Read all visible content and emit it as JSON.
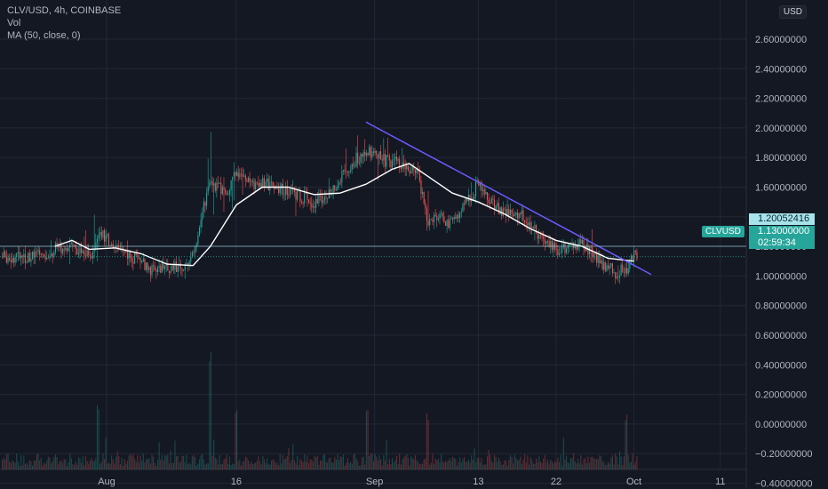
{
  "header": {
    "symbol_line": "CLV/USD, 4h, COINBASE",
    "vol_label": "Vol",
    "ma_label": "MA (50, close, 0)"
  },
  "currency_button": "USD",
  "price_tags": {
    "crosshair_price": "1.20052416",
    "symbol": "CLVUSD",
    "last_price": "1.13000000",
    "countdown": "02:59:34"
  },
  "colors": {
    "background": "#141823",
    "grid": "#232734",
    "up": "#26a69a",
    "down": "#ef5350",
    "ma": "#ffffff",
    "trendline": "#6a5cff",
    "crosshair_tag": "#a8e3ec",
    "last_tag": "#26a69a"
  },
  "chart_data": {
    "type": "candlestick",
    "title": "CLV/USD, 4h, COINBASE",
    "ylim": [
      -0.5,
      2.66
    ],
    "y_ticks": [
      "2.60000000",
      "2.40000000",
      "2.20000000",
      "2.00000000",
      "1.80000000",
      "1.60000000",
      "1.40000000",
      "1.20000000",
      "1.00000000",
      "0.80000000",
      "0.60000000",
      "0.40000000",
      "0.20000000",
      "0.00000000",
      "−0.20000000",
      "−0.40000000"
    ],
    "y_tick_values": [
      2.6,
      2.4,
      2.2,
      2.0,
      1.8,
      1.6,
      1.4,
      1.2,
      1.0,
      0.8,
      0.6,
      0.4,
      0.2,
      0.0,
      -0.2,
      -0.4
    ],
    "x_ticks": [
      "Aug",
      "16",
      "Sep",
      "13",
      "22",
      "Oct",
      "11"
    ],
    "x_tick_dates": [
      "2021-08-01",
      "2021-08-16",
      "2021-09-01",
      "2021-09-13",
      "2021-09-22",
      "2021-10-01",
      "2021-10-11"
    ],
    "x_range": [
      "2021-07-26",
      "2021-10-15"
    ],
    "price_path": [
      {
        "date": "2021-07-26",
        "price": 1.18,
        "low": 1.05,
        "high": 1.35
      },
      {
        "date": "2021-07-28",
        "price": 1.2,
        "low": 1.08,
        "high": 1.4
      },
      {
        "date": "2021-07-30",
        "price": 1.12,
        "low": 1.05,
        "high": 1.3
      },
      {
        "date": "2021-07-31",
        "price": 1.3,
        "low": 1.1,
        "high": 1.72
      },
      {
        "date": "2021-08-02",
        "price": 1.18,
        "low": 1.08,
        "high": 1.48
      },
      {
        "date": "2021-08-04",
        "price": 1.12,
        "low": 1.02,
        "high": 1.25
      },
      {
        "date": "2021-08-06",
        "price": 1.05,
        "low": 0.95,
        "high": 1.15
      },
      {
        "date": "2021-08-08",
        "price": 1.06,
        "low": 0.98,
        "high": 1.18
      },
      {
        "date": "2021-08-10",
        "price": 1.04,
        "low": 0.97,
        "high": 1.12
      },
      {
        "date": "2021-08-11",
        "price": 1.15,
        "low": 1.02,
        "high": 1.3
      },
      {
        "date": "2021-08-12",
        "price": 1.45,
        "low": 1.15,
        "high": 1.65
      },
      {
        "date": "2021-08-13",
        "price": 1.62,
        "low": 1.4,
        "high": 2.0
      },
      {
        "date": "2021-08-15",
        "price": 1.58,
        "low": 1.45,
        "high": 1.78
      },
      {
        "date": "2021-08-16",
        "price": 1.72,
        "low": 1.5,
        "high": 2.05
      },
      {
        "date": "2021-08-18",
        "price": 1.62,
        "low": 1.52,
        "high": 1.78
      },
      {
        "date": "2021-08-20",
        "price": 1.62,
        "low": 1.55,
        "high": 1.72
      },
      {
        "date": "2021-08-23",
        "price": 1.55,
        "low": 1.35,
        "high": 1.62
      },
      {
        "date": "2021-08-25",
        "price": 1.5,
        "low": 1.38,
        "high": 1.6
      },
      {
        "date": "2021-08-27",
        "price": 1.58,
        "low": 1.48,
        "high": 1.7
      },
      {
        "date": "2021-08-29",
        "price": 1.75,
        "low": 1.55,
        "high": 1.95
      },
      {
        "date": "2021-08-31",
        "price": 1.85,
        "low": 1.65,
        "high": 2.18
      },
      {
        "date": "2021-09-02",
        "price": 1.78,
        "low": 1.68,
        "high": 1.9
      },
      {
        "date": "2021-09-04",
        "price": 1.75,
        "low": 1.65,
        "high": 1.85
      },
      {
        "date": "2021-09-06",
        "price": 1.7,
        "low": 1.6,
        "high": 1.78
      },
      {
        "date": "2021-09-07",
        "price": 1.35,
        "low": 1.05,
        "high": 1.55
      },
      {
        "date": "2021-09-08",
        "price": 1.4,
        "low": 1.25,
        "high": 1.5
      },
      {
        "date": "2021-09-10",
        "price": 1.35,
        "low": 1.22,
        "high": 1.48
      },
      {
        "date": "2021-09-11",
        "price": 1.45,
        "low": 1.3,
        "high": 1.62
      },
      {
        "date": "2021-09-13",
        "price": 1.62,
        "low": 1.45,
        "high": 1.7
      },
      {
        "date": "2021-09-15",
        "price": 1.45,
        "low": 1.35,
        "high": 1.55
      },
      {
        "date": "2021-09-18",
        "price": 1.4,
        "low": 1.3,
        "high": 1.48
      },
      {
        "date": "2021-09-20",
        "price": 1.28,
        "low": 1.15,
        "high": 1.38
      },
      {
        "date": "2021-09-22",
        "price": 1.18,
        "low": 1.1,
        "high": 1.3
      },
      {
        "date": "2021-09-24",
        "price": 1.22,
        "low": 1.12,
        "high": 1.3
      },
      {
        "date": "2021-09-26",
        "price": 1.18,
        "low": 1.08,
        "high": 1.32
      },
      {
        "date": "2021-09-27",
        "price": 1.08,
        "low": 1.0,
        "high": 1.18
      },
      {
        "date": "2021-09-29",
        "price": 1.02,
        "low": 0.95,
        "high": 1.1
      },
      {
        "date": "2021-09-30",
        "price": 1.05,
        "low": 0.98,
        "high": 1.12
      },
      {
        "date": "2021-10-01",
        "price": 1.13,
        "low": 1.05,
        "high": 1.22
      }
    ],
    "ma_path": [
      {
        "date": "2021-07-26",
        "price": 1.2
      },
      {
        "date": "2021-07-28",
        "price": 1.24
      },
      {
        "date": "2021-07-30",
        "price": 1.18
      },
      {
        "date": "2021-08-02",
        "price": 1.19
      },
      {
        "date": "2021-08-05",
        "price": 1.15
      },
      {
        "date": "2021-08-08",
        "price": 1.08
      },
      {
        "date": "2021-08-11",
        "price": 1.07
      },
      {
        "date": "2021-08-13",
        "price": 1.2
      },
      {
        "date": "2021-08-16",
        "price": 1.48
      },
      {
        "date": "2021-08-19",
        "price": 1.6
      },
      {
        "date": "2021-08-22",
        "price": 1.6
      },
      {
        "date": "2021-08-25",
        "price": 1.55
      },
      {
        "date": "2021-08-28",
        "price": 1.56
      },
      {
        "date": "2021-08-31",
        "price": 1.62
      },
      {
        "date": "2021-09-03",
        "price": 1.72
      },
      {
        "date": "2021-09-05",
        "price": 1.76
      },
      {
        "date": "2021-09-07",
        "price": 1.68
      },
      {
        "date": "2021-09-10",
        "price": 1.56
      },
      {
        "date": "2021-09-13",
        "price": 1.5
      },
      {
        "date": "2021-09-16",
        "price": 1.42
      },
      {
        "date": "2021-09-19",
        "price": 1.32
      },
      {
        "date": "2021-09-22",
        "price": 1.24
      },
      {
        "date": "2021-09-25",
        "price": 1.2
      },
      {
        "date": "2021-09-28",
        "price": 1.12
      },
      {
        "date": "2021-10-01",
        "price": 1.1
      }
    ],
    "trendline": {
      "start": {
        "date": "2021-08-31",
        "price": 2.04
      },
      "end": {
        "date": "2021-10-03",
        "price": 1.01
      }
    },
    "crosshair_price": 1.20052416,
    "last_price": 1.13,
    "volume_spikes": [
      {
        "date": "2021-07-31",
        "relative": 0.55
      },
      {
        "date": "2021-08-13",
        "relative": 0.95
      },
      {
        "date": "2021-08-16",
        "relative": 0.55
      },
      {
        "date": "2021-08-31",
        "relative": 0.6
      },
      {
        "date": "2021-09-07",
        "relative": 0.45
      },
      {
        "date": "2021-09-30",
        "relative": 0.45
      }
    ]
  }
}
